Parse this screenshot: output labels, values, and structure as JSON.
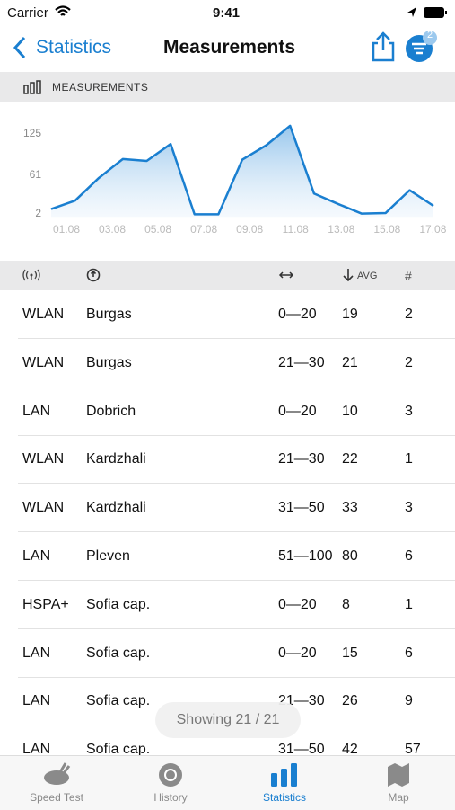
{
  "status": {
    "carrier": "Carrier",
    "time": "9:41"
  },
  "nav": {
    "back": "Statistics",
    "title": "Measurements",
    "badge": "2"
  },
  "section": "MEASUREMENTS",
  "chart_data": {
    "type": "line",
    "color": "#1a7fd0",
    "categories": [
      "01.08",
      null,
      "03.08",
      null,
      "05.08",
      null,
      "07.08",
      null,
      "09.08",
      null,
      "11.08",
      null,
      "13.08",
      null,
      "15.08",
      null,
      "17.08"
    ],
    "values": [
      8,
      21,
      56,
      85,
      82,
      108,
      0,
      0,
      84,
      106,
      136,
      32,
      16,
      1,
      2,
      37,
      13
    ],
    "ylim": [
      -4,
      140
    ],
    "yticks": [
      2,
      61,
      125
    ],
    "area": true
  },
  "table": {
    "header_avg": "AVG",
    "header_count": "#",
    "rows": [
      [
        "WLAN",
        "Burgas",
        "0—20",
        "19",
        "2"
      ],
      [
        "WLAN",
        "Burgas",
        "21—30",
        "21",
        "2"
      ],
      [
        "LAN",
        "Dobrich",
        "0—20",
        "10",
        "3"
      ],
      [
        "WLAN",
        "Kardzhali",
        "21—30",
        "22",
        "1"
      ],
      [
        "WLAN",
        "Kardzhali",
        "31—50",
        "33",
        "3"
      ],
      [
        "LAN",
        "Pleven",
        "51—100",
        "80",
        "6"
      ],
      [
        "HSPA+",
        "Sofia cap.",
        "0—20",
        "8",
        "1"
      ],
      [
        "LAN",
        "Sofia cap.",
        "0—20",
        "15",
        "6"
      ],
      [
        "LAN",
        "Sofia cap.",
        "21—30",
        "26",
        "9"
      ],
      [
        "LAN",
        "Sofia cap.",
        "31—50",
        "42",
        "57"
      ]
    ]
  },
  "toast": "Showing 21 / 21",
  "tabs": [
    "Speed Test",
    "History",
    "Statistics",
    "Map"
  ]
}
